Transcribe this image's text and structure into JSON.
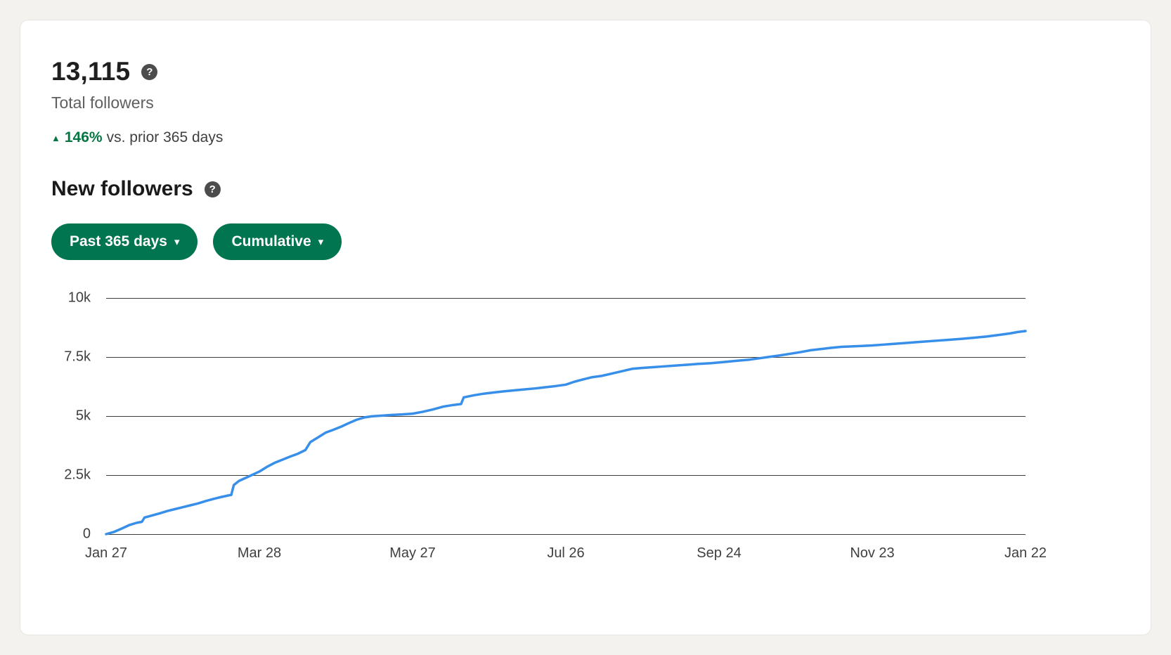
{
  "page": {
    "background": "#f4f2ee",
    "card_background": "#ffffff"
  },
  "summary": {
    "total_followers": "13,115",
    "total_followers_label": "Total followers",
    "change_value": "146%",
    "change_suffix": "vs. prior 365 days",
    "change_direction": "up",
    "change_color": "#057642"
  },
  "section": {
    "title": "New followers"
  },
  "filters": {
    "time_range": {
      "label": "Past 365 days"
    },
    "metric_type": {
      "label": "Cumulative"
    }
  },
  "icons": {
    "help": "?",
    "caret_down": "▾",
    "up_triangle": "▲"
  },
  "chart_data": {
    "type": "line",
    "title": "New followers (cumulative, past 365 days)",
    "line_color": "#378fe9",
    "grid": true,
    "legend": "none",
    "ylim": [
      0,
      10000
    ],
    "y_ticks": [
      0,
      2500,
      5000,
      7500,
      10000
    ],
    "y_tick_labels": [
      "0",
      "2.5k",
      "5k",
      "7.5k",
      "10k"
    ],
    "x_range_days": [
      0,
      360
    ],
    "x_ticks_days": [
      0,
      60,
      120,
      180,
      240,
      300,
      360
    ],
    "x_tick_labels": [
      "Jan 27",
      "Mar 28",
      "May 27",
      "Jul 26",
      "Sep 24",
      "Nov 23",
      "Jan 22"
    ],
    "points": [
      [
        0,
        0
      ],
      [
        3,
        90
      ],
      [
        6,
        230
      ],
      [
        9,
        380
      ],
      [
        12,
        480
      ],
      [
        14,
        520
      ],
      [
        15,
        700
      ],
      [
        18,
        790
      ],
      [
        21,
        880
      ],
      [
        24,
        980
      ],
      [
        27,
        1060
      ],
      [
        30,
        1140
      ],
      [
        33,
        1220
      ],
      [
        36,
        1300
      ],
      [
        39,
        1400
      ],
      [
        42,
        1490
      ],
      [
        45,
        1570
      ],
      [
        48,
        1640
      ],
      [
        49,
        1660
      ],
      [
        50,
        2080
      ],
      [
        52,
        2250
      ],
      [
        55,
        2400
      ],
      [
        58,
        2550
      ],
      [
        60,
        2650
      ],
      [
        63,
        2850
      ],
      [
        66,
        3020
      ],
      [
        69,
        3150
      ],
      [
        72,
        3280
      ],
      [
        75,
        3400
      ],
      [
        78,
        3560
      ],
      [
        80,
        3900
      ],
      [
        83,
        4100
      ],
      [
        86,
        4300
      ],
      [
        89,
        4420
      ],
      [
        92,
        4550
      ],
      [
        95,
        4700
      ],
      [
        98,
        4840
      ],
      [
        101,
        4940
      ],
      [
        104,
        4990
      ],
      [
        108,
        5020
      ],
      [
        112,
        5050
      ],
      [
        116,
        5070
      ],
      [
        120,
        5100
      ],
      [
        124,
        5180
      ],
      [
        128,
        5280
      ],
      [
        132,
        5400
      ],
      [
        136,
        5470
      ],
      [
        139,
        5510
      ],
      [
        140,
        5790
      ],
      [
        144,
        5880
      ],
      [
        148,
        5950
      ],
      [
        152,
        6000
      ],
      [
        156,
        6050
      ],
      [
        160,
        6090
      ],
      [
        164,
        6130
      ],
      [
        168,
        6170
      ],
      [
        172,
        6220
      ],
      [
        176,
        6270
      ],
      [
        180,
        6330
      ],
      [
        183,
        6440
      ],
      [
        186,
        6530
      ],
      [
        190,
        6640
      ],
      [
        194,
        6700
      ],
      [
        198,
        6800
      ],
      [
        202,
        6900
      ],
      [
        206,
        7000
      ],
      [
        210,
        7040
      ],
      [
        214,
        7070
      ],
      [
        218,
        7100
      ],
      [
        222,
        7130
      ],
      [
        227,
        7170
      ],
      [
        232,
        7210
      ],
      [
        237,
        7240
      ],
      [
        240,
        7270
      ],
      [
        244,
        7310
      ],
      [
        248,
        7350
      ],
      [
        252,
        7390
      ],
      [
        256,
        7450
      ],
      [
        260,
        7510
      ],
      [
        264,
        7570
      ],
      [
        268,
        7640
      ],
      [
        272,
        7710
      ],
      [
        276,
        7790
      ],
      [
        280,
        7840
      ],
      [
        284,
        7890
      ],
      [
        288,
        7930
      ],
      [
        292,
        7950
      ],
      [
        296,
        7970
      ],
      [
        300,
        7990
      ],
      [
        305,
        8030
      ],
      [
        310,
        8070
      ],
      [
        315,
        8110
      ],
      [
        320,
        8150
      ],
      [
        325,
        8190
      ],
      [
        330,
        8230
      ],
      [
        335,
        8270
      ],
      [
        340,
        8320
      ],
      [
        345,
        8370
      ],
      [
        350,
        8440
      ],
      [
        354,
        8500
      ],
      [
        357,
        8560
      ],
      [
        360,
        8600
      ]
    ]
  }
}
